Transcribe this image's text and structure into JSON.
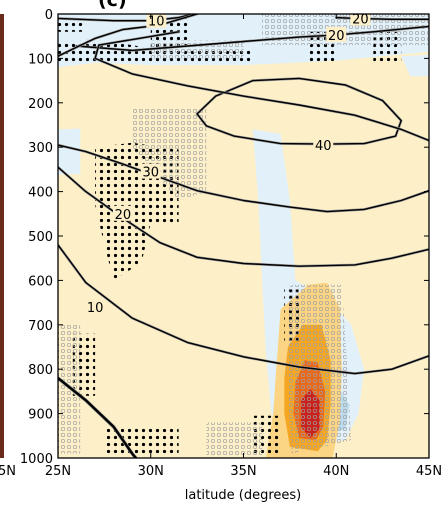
{
  "chart_data": {
    "type": "contour",
    "panel_label": "(c)",
    "xlabel": "latitude (degrees)",
    "ylabel": "",
    "xlim": [
      25,
      45
    ],
    "ylim": [
      1000,
      0
    ],
    "x_ticks": [
      {
        "value": 25,
        "label": "25N"
      },
      {
        "value": 30,
        "label": "30N"
      },
      {
        "value": 35,
        "label": "35N"
      },
      {
        "value": 40,
        "label": "40N"
      },
      {
        "value": 45,
        "label": "45N"
      }
    ],
    "y_ticks": [
      {
        "value": 0,
        "label": "0"
      },
      {
        "value": 100,
        "label": "100"
      },
      {
        "value": 200,
        "label": "200"
      },
      {
        "value": 300,
        "label": "300"
      },
      {
        "value": 400,
        "label": "400"
      },
      {
        "value": 500,
        "label": "500"
      },
      {
        "value": 600,
        "label": "600"
      },
      {
        "value": 700,
        "label": "700"
      },
      {
        "value": 800,
        "label": "800"
      },
      {
        "value": 900,
        "label": "900"
      },
      {
        "value": 1000,
        "label": "1000"
      }
    ],
    "left_edge_labels": [
      "5N"
    ],
    "colors": {
      "background": "#fdf0c8",
      "light_blue": "#e2f1f9",
      "mid_blue": "#bcdcee",
      "light_orange": "#fbd583",
      "orange": "#f5a623",
      "dark_orange": "#e8681c",
      "red": "#c9221d",
      "contour": "#000000",
      "contour_grey": "#9a9a9a"
    },
    "contours": [
      {
        "label": "10",
        "color": "black",
        "label_at": [
          27.0,
          660
        ],
        "points": [
          [
            25,
            520
          ],
          [
            26.5,
            605
          ],
          [
            29,
            685
          ],
          [
            32,
            740
          ],
          [
            35,
            772
          ],
          [
            38,
            795
          ],
          [
            41,
            810
          ],
          [
            43,
            800
          ],
          [
            45,
            770
          ]
        ]
      },
      {
        "label": "20",
        "color": "black",
        "label_at": [
          28.5,
          450
        ],
        "points": [
          [
            25,
            345
          ],
          [
            26.5,
            400
          ],
          [
            28.5,
            460
          ],
          [
            30.5,
            515
          ],
          [
            32.5,
            548
          ],
          [
            35,
            562
          ],
          [
            38,
            568
          ],
          [
            41,
            565
          ],
          [
            43,
            550
          ],
          [
            45,
            530
          ]
        ]
      },
      {
        "label": "30",
        "color": "black",
        "label_at": [
          30.0,
          355
        ],
        "points": [
          [
            25,
            295
          ],
          [
            26.5,
            310
          ],
          [
            28.5,
            338
          ],
          [
            30.5,
            368
          ],
          [
            32.5,
            398
          ],
          [
            35,
            420
          ],
          [
            37.5,
            435
          ],
          [
            39.5,
            445
          ],
          [
            41.5,
            440
          ],
          [
            43.5,
            420
          ],
          [
            45,
            398
          ]
        ]
      },
      {
        "label": "40",
        "color": "black",
        "label_at": [
          39.3,
          295
        ],
        "points": [
          [
            32.5,
            225
          ],
          [
            33.5,
            185
          ],
          [
            35.5,
            150
          ],
          [
            38,
            145
          ],
          [
            40.5,
            160
          ],
          [
            42.5,
            195
          ],
          [
            43.5,
            240
          ],
          [
            43.2,
            275
          ],
          [
            41.5,
            292
          ],
          [
            39.5,
            293
          ],
          [
            37,
            292
          ],
          [
            34.5,
            275
          ],
          [
            33,
            252
          ],
          [
            32.5,
            225
          ]
        ]
      },
      {
        "label": "20",
        "color": "black",
        "label_at": [
          40.0,
          47
        ],
        "points": [
          [
            26,
            72
          ],
          [
            29,
            82
          ],
          [
            32,
            72
          ],
          [
            35,
            62
          ],
          [
            38,
            52
          ],
          [
            40,
            47
          ],
          [
            42,
            40
          ],
          [
            45,
            28
          ]
        ]
      },
      {
        "label": "10",
        "color": "black",
        "label_at": [
          30.3,
          15
        ],
        "points": [
          [
            25,
            10
          ],
          [
            28,
            15
          ],
          [
            30,
            15
          ],
          [
            31.5,
            8
          ],
          [
            32.3,
            0
          ]
        ]
      },
      {
        "label": "20",
        "color": "black",
        "label_at": [
          41.3,
          10
        ],
        "points": [
          [
            40,
            8
          ],
          [
            41,
            10
          ],
          [
            43,
            12
          ],
          [
            45,
            12
          ]
        ]
      },
      {
        "label": "",
        "color": "black",
        "points": [
          [
            32.5,
            0
          ],
          [
            30.5,
            25
          ],
          [
            28.5,
            35
          ],
          [
            27,
            55
          ],
          [
            26,
            75
          ],
          [
            25,
            95
          ]
        ]
      },
      {
        "label": "",
        "color": "black",
        "points": [
          [
            31.5,
            40
          ],
          [
            27.2,
            70
          ],
          [
            27,
            100
          ],
          [
            29,
            135
          ],
          [
            32,
            162
          ],
          [
            35,
            185
          ],
          [
            38,
            205
          ],
          [
            41,
            228
          ],
          [
            43.5,
            260
          ],
          [
            45,
            285
          ]
        ]
      },
      {
        "label": "",
        "color": "black",
        "width": 2.4,
        "points": [
          [
            25,
            820
          ],
          [
            26.5,
            870
          ],
          [
            28,
            930
          ],
          [
            29,
            990
          ],
          [
            29.2,
            1000
          ]
        ]
      }
    ],
    "shading": [
      {
        "level": "light_blue",
        "points": [
          [
            25,
            0
          ],
          [
            45,
            0
          ],
          [
            45,
            85
          ],
          [
            40,
            105
          ],
          [
            35,
            115
          ],
          [
            30,
            115
          ],
          [
            27,
            110
          ],
          [
            25,
            120
          ]
        ]
      },
      {
        "level": "light_blue",
        "points": [
          [
            43.5,
            95
          ],
          [
            45,
            92
          ],
          [
            45,
            140
          ],
          [
            44,
            140
          ]
        ]
      },
      {
        "level": "light_blue",
        "points": [
          [
            25,
            260
          ],
          [
            26.2,
            258
          ],
          [
            26.2,
            360
          ],
          [
            25,
            362
          ]
        ]
      },
      {
        "level": "light_blue",
        "points": [
          [
            35.5,
            260
          ],
          [
            37,
            270
          ],
          [
            37.5,
            420
          ],
          [
            37.8,
            600
          ],
          [
            39.5,
            640
          ],
          [
            40.8,
            700
          ],
          [
            41.5,
            800
          ],
          [
            41.2,
            900
          ],
          [
            40.5,
            960
          ],
          [
            37.5,
            970
          ],
          [
            36.5,
            900
          ],
          [
            36.2,
            760
          ],
          [
            36,
            600
          ],
          [
            35.8,
            420
          ]
        ]
      },
      {
        "level": "mid_blue",
        "points": [
          [
            39.2,
            870
          ],
          [
            40.1,
            840
          ],
          [
            40.7,
            880
          ],
          [
            40.5,
            935
          ],
          [
            39.6,
            945
          ],
          [
            39.1,
            910
          ]
        ]
      },
      {
        "level": "light_orange",
        "points": [
          [
            37,
            665
          ],
          [
            38.5,
            610
          ],
          [
            39.5,
            605
          ],
          [
            40.2,
            665
          ],
          [
            40.3,
            800
          ],
          [
            40.2,
            915
          ],
          [
            39.8,
            1000
          ],
          [
            36.2,
            1000
          ],
          [
            36.6,
            900
          ],
          [
            36.8,
            780
          ]
        ]
      },
      {
        "level": "orange",
        "points": [
          [
            37.4,
            750
          ],
          [
            38.2,
            700
          ],
          [
            39.2,
            700
          ],
          [
            39.7,
            780
          ],
          [
            39.7,
            880
          ],
          [
            39.5,
            960
          ],
          [
            39,
            985
          ],
          [
            37.5,
            975
          ],
          [
            37.2,
            900
          ],
          [
            37.2,
            820
          ]
        ]
      },
      {
        "level": "dark_orange",
        "points": [
          [
            37.8,
            830
          ],
          [
            38.3,
            780
          ],
          [
            39,
            785
          ],
          [
            39.4,
            850
          ],
          [
            39.3,
            930
          ],
          [
            38.9,
            960
          ],
          [
            38,
            955
          ],
          [
            37.7,
            900
          ]
        ]
      },
      {
        "level": "red",
        "points": [
          [
            38.1,
            870
          ],
          [
            38.6,
            845
          ],
          [
            39.1,
            870
          ],
          [
            39.1,
            935
          ],
          [
            38.6,
            955
          ],
          [
            38.1,
            930
          ]
        ]
      }
    ],
    "stipple_regions": [
      {
        "style": "filled",
        "points": [
          [
            25,
            60
          ],
          [
            25,
            110
          ],
          [
            31,
            110
          ],
          [
            31,
            85
          ],
          [
            29,
            70
          ],
          [
            27,
            58
          ]
        ]
      },
      {
        "style": "filled",
        "points": [
          [
            30,
            10
          ],
          [
            32,
            10
          ],
          [
            32,
            110
          ],
          [
            30,
            110
          ]
        ]
      },
      {
        "style": "filled",
        "points": [
          [
            32,
            75
          ],
          [
            35.5,
            75
          ],
          [
            35.5,
            110
          ],
          [
            32,
            110
          ]
        ]
      },
      {
        "style": "filled",
        "points": [
          [
            38.5,
            40
          ],
          [
            40,
            40
          ],
          [
            40,
            110
          ],
          [
            38.5,
            110
          ]
        ]
      },
      {
        "style": "filled",
        "points": [
          [
            42,
            40
          ],
          [
            43.5,
            40
          ],
          [
            43.5,
            110
          ],
          [
            42,
            110
          ]
        ]
      },
      {
        "style": "filled",
        "points": [
          [
            25,
            20
          ],
          [
            26.5,
            20
          ],
          [
            26.5,
            40
          ],
          [
            25,
            40
          ]
        ]
      },
      {
        "style": "filled",
        "points": [
          [
            27,
            300
          ],
          [
            29,
            290
          ],
          [
            31.5,
            305
          ],
          [
            31.5,
            470
          ],
          [
            30,
            470
          ],
          [
            29.5,
            560
          ],
          [
            28,
            600
          ],
          [
            27.5,
            520
          ],
          [
            27,
            430
          ]
        ]
      },
      {
        "style": "filled",
        "points": [
          [
            25.8,
            720
          ],
          [
            27,
            720
          ],
          [
            27,
            860
          ],
          [
            25.8,
            860
          ]
        ]
      },
      {
        "style": "filled",
        "points": [
          [
            27.5,
            930
          ],
          [
            31.5,
            930
          ],
          [
            31.5,
            990
          ],
          [
            27.5,
            990
          ]
        ]
      },
      {
        "style": "filled",
        "points": [
          [
            35.5,
            905
          ],
          [
            37,
            905
          ],
          [
            37,
            990
          ],
          [
            35.5,
            990
          ]
        ]
      },
      {
        "style": "filled",
        "points": [
          [
            37.2,
            620
          ],
          [
            38,
            620
          ],
          [
            38,
            740
          ],
          [
            37.2,
            740
          ]
        ]
      },
      {
        "style": "open",
        "points": [
          [
            25,
            700
          ],
          [
            26.2,
            700
          ],
          [
            26.2,
            990
          ],
          [
            25,
            990
          ]
        ]
      },
      {
        "style": "open",
        "points": [
          [
            29,
            210
          ],
          [
            33,
            210
          ],
          [
            33,
            400
          ],
          [
            31.5,
            420
          ],
          [
            29,
            300
          ]
        ]
      },
      {
        "style": "open",
        "points": [
          [
            30,
            60
          ],
          [
            35,
            60
          ],
          [
            35,
            100
          ],
          [
            30,
            100
          ]
        ]
      },
      {
        "style": "open",
        "points": [
          [
            36,
            0
          ],
          [
            45,
            0
          ],
          [
            45,
            70
          ],
          [
            36,
            70
          ]
        ]
      },
      {
        "style": "open",
        "points": [
          [
            33,
            920
          ],
          [
            36,
            920
          ],
          [
            36,
            995
          ],
          [
            33,
            995
          ]
        ]
      },
      {
        "style": "open",
        "points": [
          [
            37.5,
            610
          ],
          [
            40.3,
            610
          ],
          [
            40.6,
            800
          ],
          [
            40.8,
            960
          ],
          [
            37.6,
            990
          ],
          [
            37.3,
            800
          ]
        ]
      }
    ]
  }
}
